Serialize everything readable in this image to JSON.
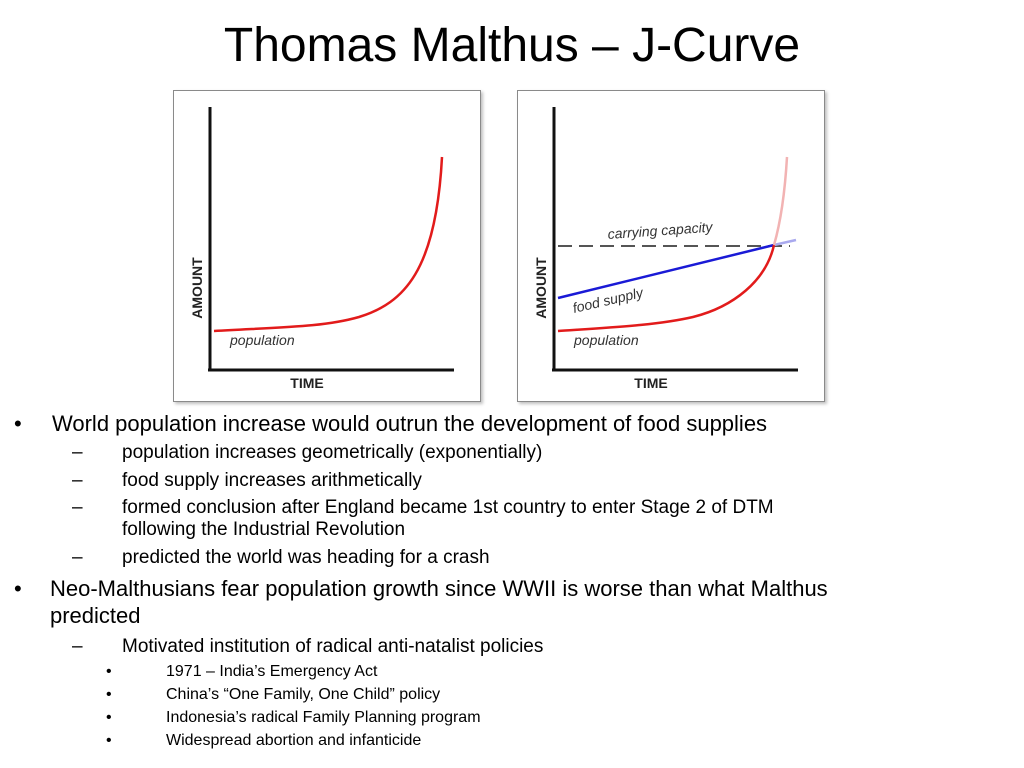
{
  "title": "Thomas Malthus – J-Curve",
  "figures": {
    "left": {
      "x_axis_label": "TIME",
      "y_axis_label": "AMOUNT",
      "population_label": "population"
    },
    "right": {
      "x_axis_label": "TIME",
      "y_axis_label": "AMOUNT",
      "population_label": "population",
      "food_supply_label": "food supply",
      "carrying_capacity_label": "carrying capacity"
    }
  },
  "colors": {
    "population_curve": "#e21b1b",
    "food_supply_line": "#1a1ad6",
    "carrying_capacity_line": "#555555"
  },
  "bullets": {
    "b1": "World population increase would outrun the development of food supplies",
    "b1_subs": [
      "population increases geometrically (exponentially)",
      "food supply increases arithmetically",
      "formed conclusion after England became 1st country to enter Stage 2 of DTM",
      "following the Industrial Revolution",
      "predicted the world was heading for a crash"
    ],
    "b2_line1": "Neo-Malthusians fear population growth since WWII is worse than what  Malthus",
    "b2_line2": "predicted",
    "b2_sub": "Motivated institution of radical anti-natalist policies",
    "b2_subsubs": [
      "1971 – India’s Emergency Act",
      "China’s “One Family, One Child” policy",
      "Indonesia’s radical Family Planning program",
      "Widespread abortion and infanticide"
    ],
    "markers": {
      "level1": "•",
      "level2": "–",
      "level3": "•"
    }
  }
}
